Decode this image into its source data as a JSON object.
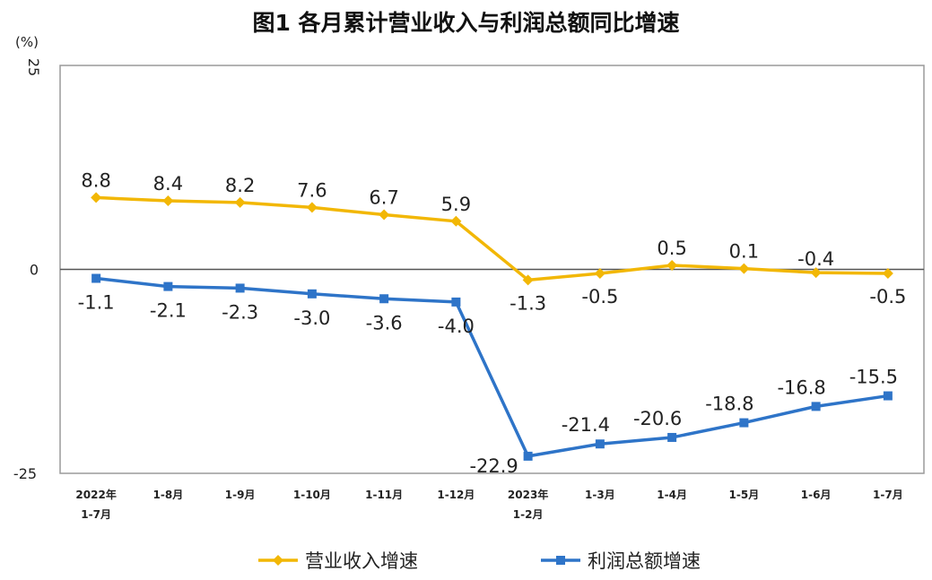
{
  "chart_data": {
    "type": "line",
    "title": "图1  各月累计营业收入与利润总额同比增速",
    "unit_label": "(%)",
    "categories": [
      [
        "2022年",
        "1-7月"
      ],
      [
        "1-8月"
      ],
      [
        "1-9月"
      ],
      [
        "1-10月"
      ],
      [
        "1-11月"
      ],
      [
        "1-12月"
      ],
      [
        "2023年",
        "1-2月"
      ],
      [
        "1-3月"
      ],
      [
        "1-4月"
      ],
      [
        "1-5月"
      ],
      [
        "1-6月"
      ],
      [
        "1-7月"
      ]
    ],
    "y_ticks": [
      "25",
      "0",
      "-25"
    ],
    "ylim": [
      -25,
      25
    ],
    "grid": false,
    "legend_position": "bottom",
    "series": [
      {
        "name": "营业收入增速",
        "color": "#f2b705",
        "marker": "diamond",
        "values": [
          8.8,
          8.4,
          8.2,
          7.6,
          6.7,
          5.9,
          -1.3,
          -0.5,
          0.5,
          0.1,
          -0.4,
          -0.5
        ],
        "labels": [
          "8.8",
          "8.4",
          "8.2",
          "7.6",
          "6.7",
          "5.9",
          "-1.3",
          "-0.5",
          "0.5",
          "0.1",
          "-0.4",
          "-0.5"
        ]
      },
      {
        "name": "利润总额增速",
        "color": "#2e74c8",
        "marker": "square",
        "values": [
          -1.1,
          -2.1,
          -2.3,
          -3.0,
          -3.6,
          -4.0,
          -22.9,
          -21.4,
          -20.6,
          -18.8,
          -16.8,
          -15.5
        ],
        "labels": [
          "-1.1",
          "-2.1",
          "-2.3",
          "-3.0",
          "-3.6",
          "-4.0",
          "-22.9",
          "-21.4",
          "-20.6",
          "-18.8",
          "-16.8",
          "-15.5"
        ]
      }
    ]
  }
}
